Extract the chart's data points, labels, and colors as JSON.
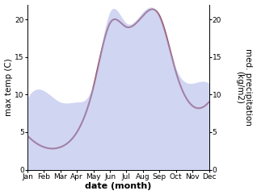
{
  "months": [
    "Jan",
    "Feb",
    "Mar",
    "Apr",
    "May",
    "Jun",
    "Jul",
    "Aug",
    "Sep",
    "Oct",
    "Nov",
    "Dec"
  ],
  "month_indices": [
    1,
    2,
    3,
    4,
    5,
    6,
    7,
    8,
    9,
    10,
    11,
    12
  ],
  "temp_max": [
    4.5,
    3.0,
    3.0,
    5.0,
    11.0,
    19.5,
    19.0,
    20.5,
    20.5,
    13.0,
    8.5,
    9.0
  ],
  "precipitation": [
    9.5,
    10.5,
    9.0,
    9.0,
    11.5,
    21.0,
    19.5,
    21.0,
    20.5,
    13.5,
    11.5,
    11.5
  ],
  "temp_color": "#994455",
  "precip_color": "#aab4e8",
  "precip_fill_alpha": 0.55,
  "left_ylabel": "max temp (C)",
  "right_ylabel": "med. precipitation\n(kg/m2)",
  "xlabel": "date (month)",
  "left_ylim": [
    0,
    22
  ],
  "right_ylim": [
    0,
    22
  ],
  "left_yticks": [
    0,
    5,
    10,
    15,
    20
  ],
  "right_yticks": [
    0,
    5,
    10,
    15,
    20
  ],
  "bg_color": "#ffffff",
  "label_fontsize": 7.5,
  "tick_fontsize": 6.5,
  "xlabel_fontsize": 8
}
